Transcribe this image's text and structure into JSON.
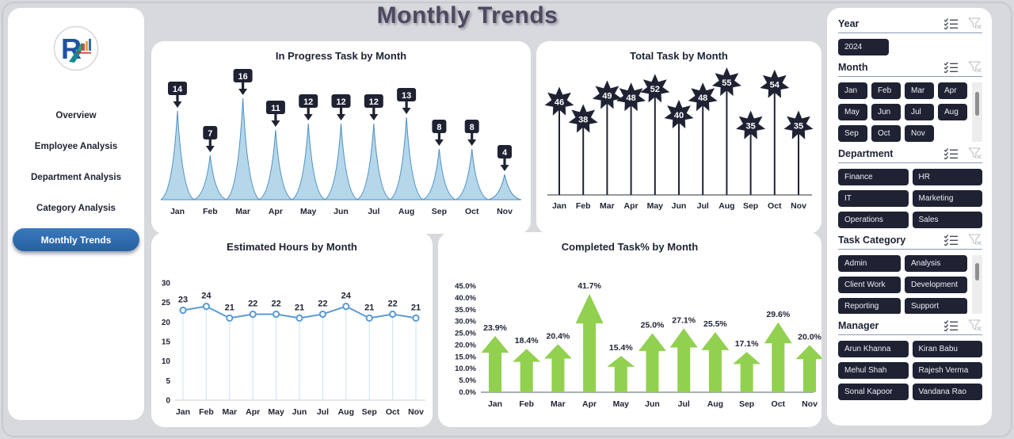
{
  "header": {
    "title": "Monthly Trends"
  },
  "sidebar": {
    "items": [
      {
        "label": "Overview",
        "active": false
      },
      {
        "label": "Employee Analysis",
        "active": false
      },
      {
        "label": "Department Analysis",
        "active": false
      },
      {
        "label": "Category Analysis",
        "active": false
      },
      {
        "label": "Monthly Trends",
        "active": true
      }
    ]
  },
  "colors": {
    "navy": "#1f2233",
    "active_nav_blue": "#2d6bb0",
    "peak_fill": "#b5d7e9",
    "peak_stroke": "#4a90c4",
    "line_blue": "#5b9bd5",
    "drop_line": "#d3e7f4",
    "arrow_green": "#92d050",
    "title_purple": "#4e4860"
  },
  "chart_data": [
    {
      "type": "area-peaks",
      "title": "In Progress Task by Month",
      "categories": [
        "Jan",
        "Feb",
        "Mar",
        "Apr",
        "May",
        "Jun",
        "Jul",
        "Aug",
        "Sep",
        "Oct",
        "Nov"
      ],
      "values": [
        14,
        7,
        16,
        11,
        12,
        12,
        12,
        13,
        8,
        8,
        4
      ],
      "ylim": [
        0,
        16
      ],
      "grid": false,
      "legend": "none"
    },
    {
      "type": "lollipop-star",
      "title": "Total Task by Month",
      "categories": [
        "Jan",
        "Feb",
        "Mar",
        "Apr",
        "May",
        "Jun",
        "Jul",
        "Aug",
        "Sep",
        "Oct",
        "Nov"
      ],
      "values": [
        46,
        38,
        49,
        48,
        52,
        40,
        48,
        55,
        35,
        54,
        35
      ],
      "ylim": [
        0,
        55
      ],
      "grid": false,
      "legend": "none"
    },
    {
      "type": "line",
      "title": "Estimated Hours by Month",
      "categories": [
        "Jan",
        "Feb",
        "Mar",
        "Apr",
        "May",
        "Jun",
        "Jul",
        "Aug",
        "Sep",
        "Oct",
        "Nov"
      ],
      "values": [
        23,
        24,
        21,
        22,
        22,
        21,
        22,
        24,
        21,
        22,
        21
      ],
      "yticks": [
        0,
        5,
        10,
        15,
        20,
        25,
        30
      ],
      "ylim": [
        0,
        30
      ],
      "grid": false,
      "legend": "none"
    },
    {
      "type": "arrow-bar",
      "title": "Completed Task% by Month",
      "categories": [
        "Jan",
        "Feb",
        "Mar",
        "Apr",
        "May",
        "Jun",
        "Jul",
        "Aug",
        "Sep",
        "Oct",
        "Nov"
      ],
      "values": [
        23.9,
        18.4,
        20.4,
        41.7,
        15.4,
        25.0,
        27.1,
        25.5,
        17.1,
        29.6,
        20.0
      ],
      "labels": [
        "23.9%",
        "18.4%",
        "20.4%",
        "41.7%",
        "15.4%",
        "25.0%",
        "27.1%",
        "25.5%",
        "17.1%",
        "29.6%",
        "20.0%"
      ],
      "yticks": [
        0,
        5,
        10,
        15,
        20,
        25,
        30,
        35,
        40,
        45
      ],
      "ytick_suffix": ".0%",
      "ylim": [
        0,
        45
      ],
      "grid": false,
      "legend": "none"
    }
  ],
  "slicers": [
    {
      "title": "Year",
      "items": [
        "2024"
      ]
    },
    {
      "title": "Month",
      "items": [
        "Jan",
        "Feb",
        "Mar",
        "Apr",
        "May",
        "Jun",
        "Jul",
        "Aug",
        "Sep",
        "Oct",
        "Nov"
      ]
    },
    {
      "title": "Department",
      "items": [
        "Finance",
        "HR",
        "IT",
        "Marketing",
        "Operations",
        "Sales"
      ]
    },
    {
      "title": "Task Category",
      "items": [
        "Admin",
        "Analysis",
        "Client Work",
        "Development",
        "Reporting",
        "Support"
      ]
    },
    {
      "title": "Manager",
      "items": [
        "Arun Khanna",
        "Kiran Babu",
        "Mehul Shah",
        "Rajesh Verma",
        "Sonal Kapoor",
        "Vandana Rao"
      ]
    }
  ]
}
